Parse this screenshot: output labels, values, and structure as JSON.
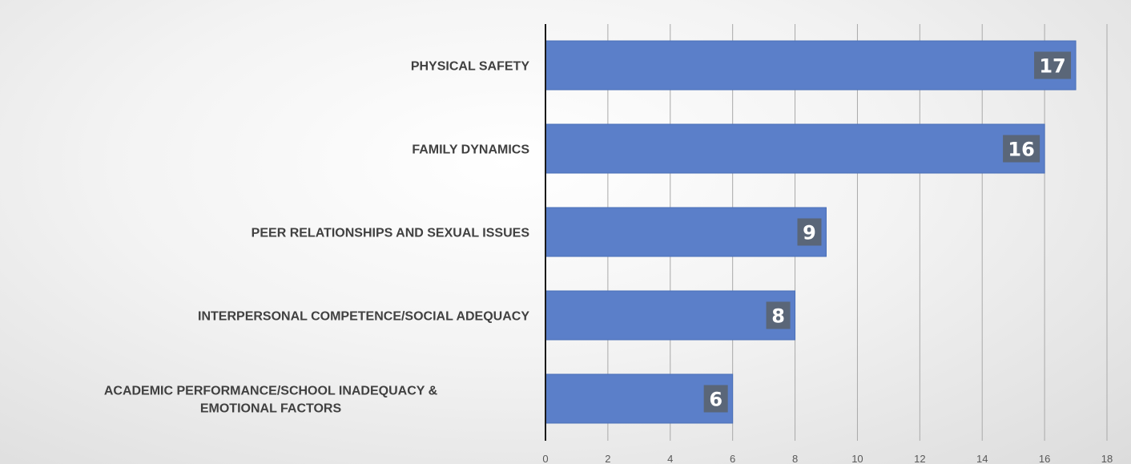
{
  "chart_data": {
    "type": "bar",
    "orientation": "horizontal",
    "title": "",
    "xlabel": "",
    "ylabel": "",
    "categories": [
      "PHYSICAL SAFETY",
      "FAMILY DYNAMICS",
      "PEER RELATIONSHIPS AND SEXUAL ISSUES",
      "INTERPERSONAL COMPETENCE/SOCIAL ADEQUACY",
      "ACADEMIC PERFORMANCE/SCHOOL INADEQUACY & EMOTIONAL FACTORS"
    ],
    "values": [
      17,
      16,
      9,
      8,
      6
    ],
    "data_labels": [
      "17",
      "16",
      "9",
      "8",
      "6"
    ],
    "xlim": [
      0,
      18
    ],
    "ticks": [
      0,
      2,
      4,
      6,
      8,
      10,
      12,
      14,
      16,
      18
    ],
    "tick_labels": [
      "0",
      "2",
      "4",
      "6",
      "8",
      "10",
      "12",
      "14",
      "16",
      "18"
    ],
    "grid": true,
    "legend": "none",
    "colors": {
      "bar": "#5b7fc9",
      "bar_edge": "#4a6fb8",
      "label_box": "#5a6678",
      "gridline": "#a9a9a9",
      "axis": "#1a1a1a"
    }
  }
}
